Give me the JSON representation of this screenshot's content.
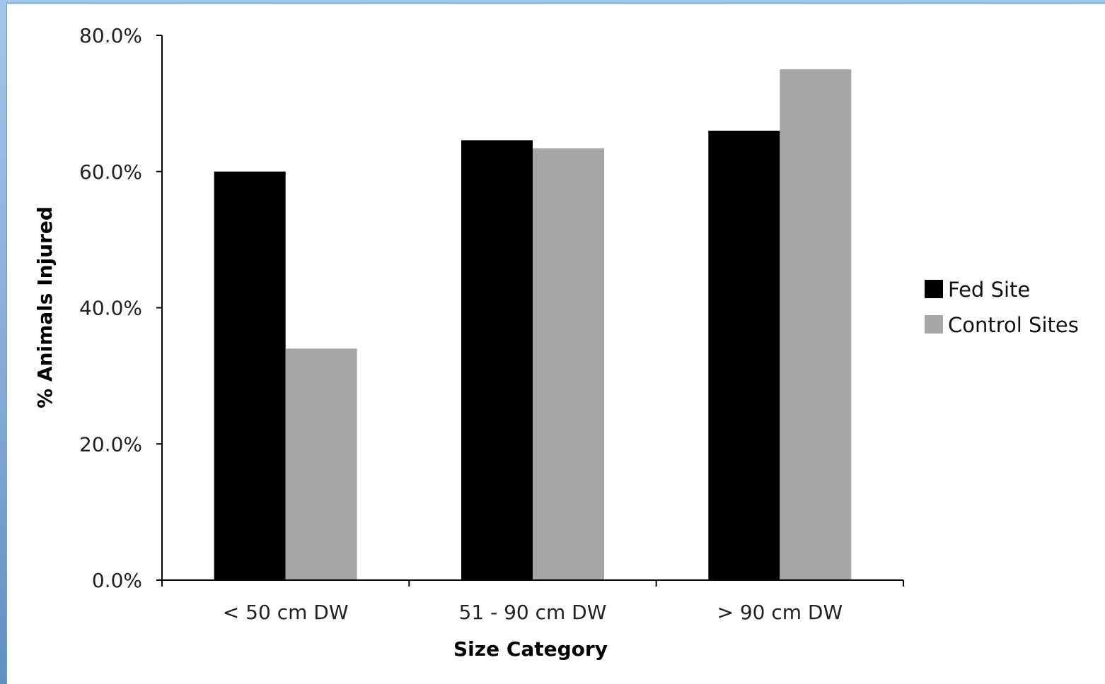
{
  "chart_data": {
    "type": "bar",
    "title": "",
    "xlabel": "Size Category",
    "ylabel": "% Animals Injured",
    "categories": [
      "< 50 cm DW",
      "51 - 90 cm DW",
      "> 90 cm DW"
    ],
    "series": [
      {
        "name": "Fed Site",
        "values": [
          60.0,
          64.6,
          66.0
        ],
        "color": "#000000"
      },
      {
        "name": "Control Sites",
        "values": [
          34.0,
          63.4,
          75.0
        ],
        "color": "#a6a6a6"
      }
    ],
    "ylim": [
      0,
      80
    ],
    "yticks": [
      "0.0%",
      "20.0%",
      "40.0%",
      "60.0%",
      "80.0%"
    ],
    "ytick_values": [
      0,
      20,
      40,
      60,
      80
    ],
    "grid": false,
    "legend_position": "right"
  }
}
